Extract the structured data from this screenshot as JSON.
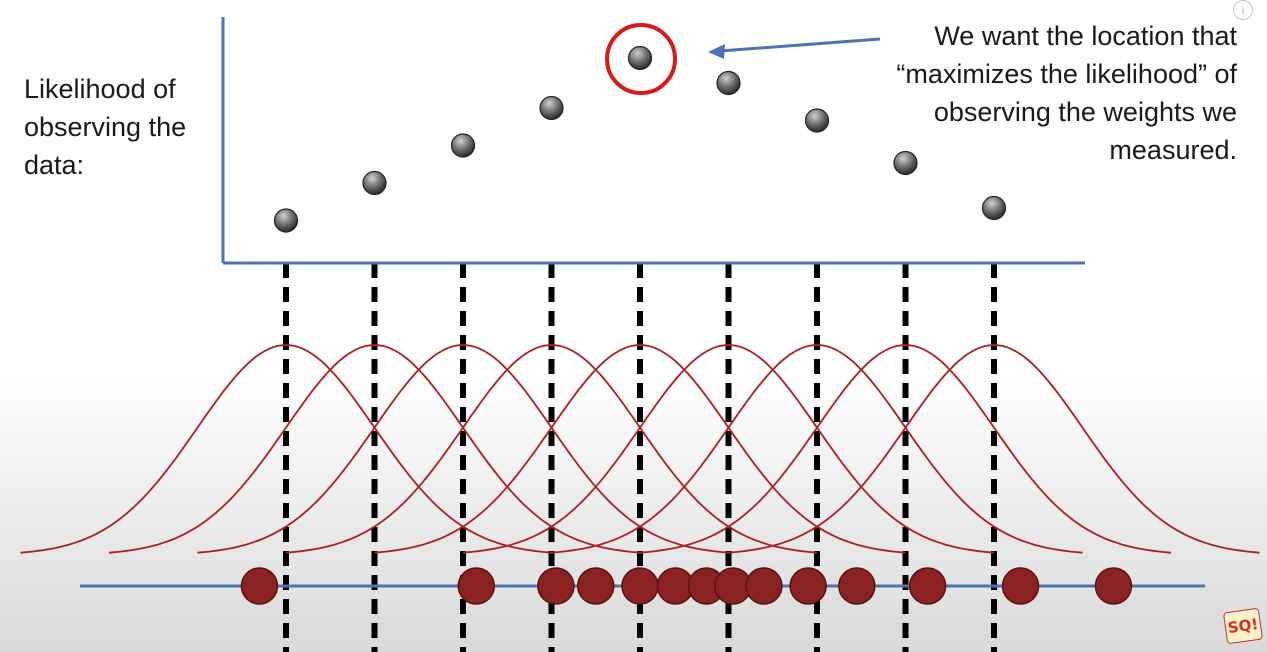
{
  "labels": {
    "likelihood_axis": "Likelihood of observing the data:",
    "callout": "We want the location that “maximizes the likelihood” of observing the weights we measured."
  },
  "controls": {
    "info_glyph": "i"
  },
  "logo": {
    "text": "SQ!"
  },
  "colors": {
    "axis": "#4f72b4",
    "curve": "#b01e23",
    "data_point": "#8b2222",
    "likelihood_point": "#6e6e6e",
    "highlight_circle": "#d91a1a",
    "arrow": "#4f72b4",
    "dashed_line": "#000000"
  },
  "chart_data": {
    "type": "scatter",
    "title": "",
    "xlabel": "",
    "ylabel": "Likelihood of observing the data:",
    "candidate_locations": [
      1,
      2,
      3,
      4,
      5,
      6,
      7,
      8,
      9
    ],
    "likelihood_values": [
      0.15,
      0.3,
      0.45,
      0.6,
      0.8,
      0.7,
      0.55,
      0.38,
      0.2
    ],
    "max_index": 4,
    "observed_weights": [
      0.7,
      3.15,
      4.05,
      4.5,
      5.0,
      5.4,
      5.75,
      6.05,
      6.4,
      6.9,
      7.45,
      8.25,
      9.3,
      10.35
    ],
    "distribution": "normal",
    "sigma": 1.0,
    "xlim": [
      0,
      11
    ],
    "grid": false,
    "legend": "none"
  }
}
